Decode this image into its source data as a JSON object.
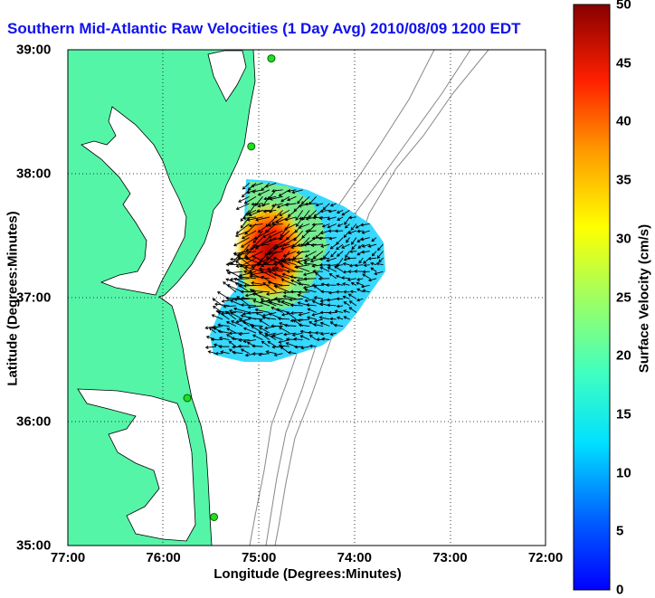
{
  "title": "Southern Mid-Atlantic Raw Velocities (1 Day Avg) 2010/08/09 1200 EDT",
  "colors": {
    "land": "#55f5a8",
    "ocean": "#ffffff",
    "coastline": "#000000",
    "bathymetry": "#888888",
    "station": "#22dd22",
    "title": "#1111ee"
  },
  "chart_data": {
    "type": "heatmap",
    "title": "Southern Mid-Atlantic Raw Velocities (1 Day Avg) 2010/08/09 1200 EDT",
    "xlabel": "Longitude (Degrees:Minutes)",
    "ylabel": "Latitude (Degrees:Minutes)",
    "xlim": [
      -77,
      -72
    ],
    "ylim": [
      35,
      39
    ],
    "x_ticks": [
      "77:00",
      "76:00",
      "75:00",
      "74:00",
      "73:00",
      "72:00"
    ],
    "y_ticks": [
      "39:00",
      "38:00",
      "37:00",
      "36:00",
      "35:00"
    ],
    "grid": "dotted",
    "colorbar": {
      "label": "Surface Velocity (cm/s)",
      "range": [
        0,
        50
      ],
      "ticks": [
        "50",
        "45",
        "40",
        "35",
        "30",
        "25",
        "20",
        "15",
        "10",
        "5",
        "0"
      ],
      "colormap": "jet"
    },
    "stations": [
      {
        "lon": -74.87,
        "lat": 38.93
      },
      {
        "lon": -75.08,
        "lat": 38.22
      },
      {
        "lon": -75.75,
        "lat": 36.19
      },
      {
        "lon": -75.47,
        "lat": 35.23
      }
    ],
    "field_summary": {
      "max_speed_region": {
        "lon": -74.95,
        "lat": 37.25,
        "speed": 48
      },
      "coverage_lon": [
        -75.45,
        -73.7
      ],
      "coverage_lat": [
        36.55,
        38.0
      ]
    }
  }
}
